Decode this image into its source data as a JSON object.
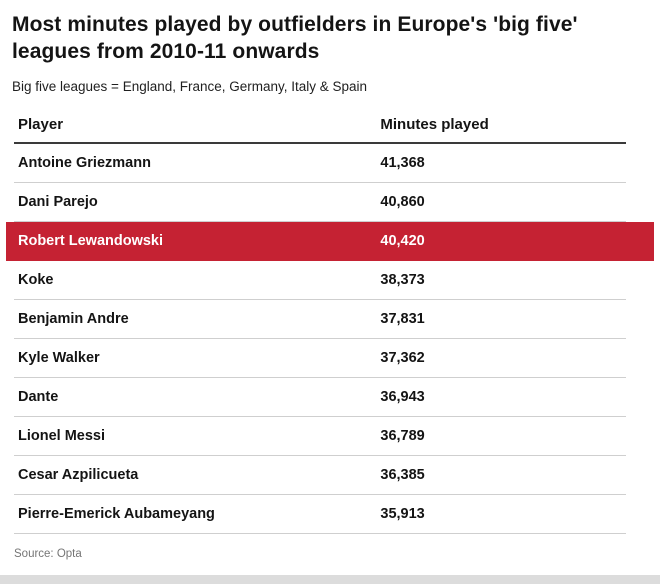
{
  "header": {
    "title": "Most minutes played by outfielders in Europe's 'big five' leagues from 2010-11 onwards",
    "subtitle": "Big five leagues = England, France, Germany, Italy & Spain"
  },
  "table": {
    "headers": {
      "player": "Player",
      "minutes": "Minutes played"
    },
    "rows": [
      {
        "player": "Antoine Griezmann",
        "minutes": "41,368",
        "highlight": false
      },
      {
        "player": "Dani Parejo",
        "minutes": "40,860",
        "highlight": false
      },
      {
        "player": "Robert Lewandowski",
        "minutes": "40,420",
        "highlight": true
      },
      {
        "player": "Koke",
        "minutes": "38,373",
        "highlight": false
      },
      {
        "player": "Benjamin Andre",
        "minutes": "37,831",
        "highlight": false
      },
      {
        "player": "Kyle Walker",
        "minutes": "37,362",
        "highlight": false
      },
      {
        "player": "Dante",
        "minutes": "36,943",
        "highlight": false
      },
      {
        "player": "Lionel Messi",
        "minutes": "36,789",
        "highlight": false
      },
      {
        "player": "Cesar Azpilicueta",
        "minutes": "36,385",
        "highlight": false
      },
      {
        "player": "Pierre-Emerick Aubameyang",
        "minutes": "35,913",
        "highlight": false
      }
    ]
  },
  "footer": {
    "source": "Source: Opta"
  },
  "colors": {
    "highlight_row": "#c52233",
    "highlight_text": "#ffffff",
    "row_divider": "#cfcfcf",
    "header_rule": "#3a3a3a",
    "bottom_bar": "#dcdcdc"
  },
  "chart_data": {
    "type": "table",
    "title": "Most minutes played by outfielders in Europe's 'big five' leagues from 2010-11 onwards",
    "subtitle": "Big five leagues = England, France, Germany, Italy & Spain",
    "columns": [
      "Player",
      "Minutes played"
    ],
    "rows": [
      [
        "Antoine Griezmann",
        41368
      ],
      [
        "Dani Parejo",
        40860
      ],
      [
        "Robert Lewandowski",
        40420
      ],
      [
        "Koke",
        38373
      ],
      [
        "Benjamin Andre",
        37831
      ],
      [
        "Kyle Walker",
        37362
      ],
      [
        "Dante",
        36943
      ],
      [
        "Lionel Messi",
        36789
      ],
      [
        "Cesar Azpilicueta",
        36385
      ],
      [
        "Pierre-Emerick Aubameyang",
        35913
      ]
    ],
    "highlighted_row": "Robert Lewandowski",
    "source": "Opta"
  }
}
